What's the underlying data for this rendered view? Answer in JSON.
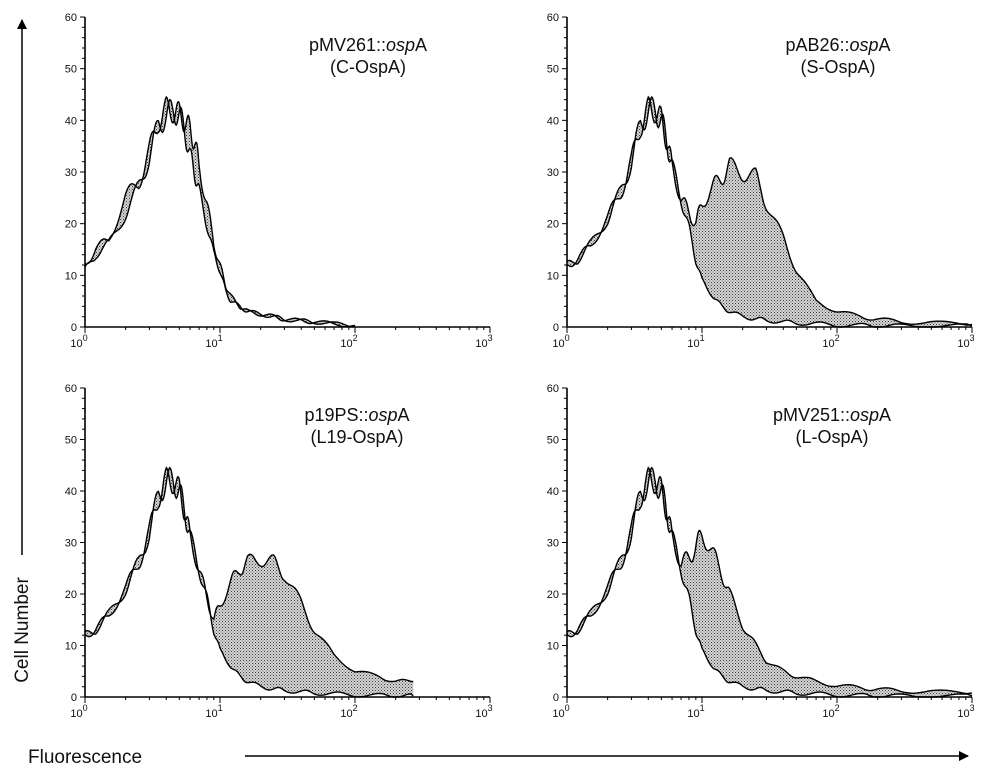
{
  "axis_titles": {
    "x": "Fluorescence",
    "y": "Cell Number"
  },
  "chart_data": [
    {
      "type": "area",
      "title_main": "pMV261::",
      "title_italic": "osp",
      "title_suffix": "A",
      "subtitle": "(C-OspA)",
      "xscale": "log",
      "xlim": [
        1,
        1000
      ],
      "ylim": [
        0,
        60
      ],
      "yticks": [
        "0",
        "10",
        "20",
        "30",
        "40",
        "50",
        "60"
      ],
      "xticks": [
        {
          "base": "10",
          "exp": "0"
        },
        {
          "base": "10",
          "exp": "1"
        },
        {
          "base": "10",
          "exp": "2"
        },
        {
          "base": "10",
          "exp": "3"
        }
      ],
      "series": [
        {
          "role": "control",
          "x": [
            1,
            1.2,
            1.5,
            2,
            2.5,
            3,
            3.5,
            4,
            4.5,
            5,
            5.5,
            6,
            6.5,
            7,
            8,
            9,
            10,
            11,
            12,
            14,
            16,
            20,
            25,
            30,
            40,
            50,
            70,
            100
          ],
          "y": [
            11,
            14,
            16,
            22,
            27,
            33,
            39,
            41,
            42,
            41,
            38,
            33,
            30,
            26,
            20,
            14,
            11,
            7,
            5,
            4,
            3,
            2.5,
            2,
            1.5,
            1.2,
            1,
            0.6,
            0.3
          ]
        },
        {
          "role": "sample",
          "x": [
            1,
            1.2,
            1.5,
            2,
            2.5,
            3,
            3.5,
            4,
            4.5,
            5,
            5.5,
            6,
            6.5,
            7,
            8,
            9,
            10,
            11,
            12,
            14,
            16,
            20,
            25,
            30,
            40,
            50,
            70,
            100
          ],
          "y": [
            12,
            15,
            17,
            25,
            28,
            34,
            40,
            42,
            42,
            41,
            40,
            38,
            36,
            31,
            24,
            16,
            12,
            8,
            6,
            4,
            3,
            2.5,
            2,
            1.5,
            1.2,
            1,
            0.6,
            0.3
          ]
        }
      ]
    },
    {
      "type": "area",
      "title_main": "pAB26::",
      "title_italic": "osp",
      "title_suffix": "A",
      "subtitle": "(S-OspA)",
      "xscale": "log",
      "xlim": [
        1,
        1000
      ],
      "ylim": [
        0,
        60
      ],
      "yticks": [
        "0",
        "10",
        "20",
        "30",
        "40",
        "50",
        "60"
      ],
      "xticks": [
        {
          "base": "10",
          "exp": "0"
        },
        {
          "base": "10",
          "exp": "1"
        },
        {
          "base": "10",
          "exp": "2"
        },
        {
          "base": "10",
          "exp": "3"
        }
      ],
      "series": [
        {
          "role": "control",
          "x": [
            1,
            1.2,
            1.5,
            2,
            2.5,
            3,
            3.5,
            4,
            4.5,
            5,
            5.5,
            6,
            7,
            8,
            9,
            10,
            12,
            14,
            16,
            20,
            25,
            30,
            40,
            50,
            70,
            100,
            150,
            200,
            300,
            500,
            1000
          ],
          "y": [
            12,
            13,
            16,
            21,
            26,
            32,
            39,
            42,
            42,
            40,
            36,
            31,
            25,
            19,
            13,
            9,
            6,
            4,
            3,
            2,
            1.6,
            1.3,
            1,
            0.8,
            0.6,
            0.4,
            0.3,
            0.3,
            0.2,
            0.2,
            0.2
          ]
        },
        {
          "role": "sample",
          "x": [
            1,
            1.2,
            1.5,
            2,
            2.5,
            3,
            3.5,
            4,
            4.5,
            5,
            5.5,
            6,
            7,
            8,
            9,
            10,
            12,
            14,
            16,
            20,
            25,
            30,
            40,
            50,
            70,
            100,
            150,
            200,
            300,
            500,
            1000
          ],
          "y": [
            12,
            13,
            16,
            21,
            26,
            32,
            39,
            42,
            42,
            40,
            36,
            31,
            25,
            22,
            20,
            24,
            27,
            29,
            31,
            30,
            29,
            24,
            17,
            11,
            5,
            3,
            2,
            1.5,
            1,
            0.8,
            0.5
          ]
        }
      ]
    },
    {
      "type": "area",
      "title_main": "p19PS::",
      "title_italic": "osp",
      "title_suffix": "A",
      "subtitle": "(L19-OspA)",
      "xscale": "log",
      "xlim": [
        1,
        1000
      ],
      "ylim": [
        0,
        60
      ],
      "yticks": [
        "0",
        "10",
        "20",
        "30",
        "40",
        "50",
        "60"
      ],
      "xticks": [
        {
          "base": "10",
          "exp": "0"
        },
        {
          "base": "10",
          "exp": "1"
        },
        {
          "base": "10",
          "exp": "2"
        },
        {
          "base": "10",
          "exp": "3"
        }
      ],
      "series": [
        {
          "role": "control",
          "x": [
            1,
            1.2,
            1.5,
            2,
            2.5,
            3,
            3.5,
            4,
            4.5,
            5,
            5.5,
            6,
            7,
            8,
            9,
            10,
            12,
            14,
            16,
            20,
            25,
            30,
            40,
            50,
            70,
            100,
            150,
            200,
            270
          ],
          "y": [
            12,
            13,
            16,
            21,
            26,
            32,
            39,
            42,
            42,
            40,
            36,
            31,
            25,
            19,
            13,
            9,
            6,
            4,
            3,
            2,
            1.6,
            1.3,
            1,
            0.8,
            0.6,
            0.4,
            0.3,
            0.3,
            0.2
          ]
        },
        {
          "role": "sample",
          "x": [
            1,
            1.2,
            1.5,
            2,
            2.5,
            3,
            3.5,
            4,
            4.5,
            5,
            5.5,
            6,
            7,
            8,
            9,
            10,
            12,
            14,
            16,
            20,
            25,
            30,
            40,
            50,
            70,
            100,
            150,
            200,
            270
          ],
          "y": [
            12,
            13,
            16,
            21,
            26,
            32,
            39,
            42,
            42,
            40,
            36,
            31,
            25,
            19,
            15,
            18,
            22,
            25,
            26,
            27,
            26,
            24,
            18,
            13,
            8,
            5,
            4,
            3,
            3
          ]
        }
      ]
    },
    {
      "type": "area",
      "title_main": "pMV251::",
      "title_italic": "osp",
      "title_suffix": "A",
      "subtitle": "(L-OspA)",
      "xscale": "log",
      "xlim": [
        1,
        1000
      ],
      "ylim": [
        0,
        60
      ],
      "yticks": [
        "0",
        "10",
        "20",
        "30",
        "40",
        "50",
        "60"
      ],
      "xticks": [
        {
          "base": "10",
          "exp": "0"
        },
        {
          "base": "10",
          "exp": "1"
        },
        {
          "base": "10",
          "exp": "2"
        },
        {
          "base": "10",
          "exp": "3"
        }
      ],
      "series": [
        {
          "role": "control",
          "x": [
            1,
            1.2,
            1.5,
            2,
            2.5,
            3,
            3.5,
            4,
            4.5,
            5,
            5.5,
            6,
            7,
            8,
            9,
            10,
            12,
            14,
            16,
            20,
            25,
            30,
            40,
            50,
            70,
            100,
            150,
            200,
            300,
            500,
            1000
          ],
          "y": [
            12,
            13,
            16,
            21,
            26,
            32,
            39,
            42,
            42,
            40,
            36,
            31,
            25,
            19,
            13,
            9,
            6,
            4,
            3,
            2,
            1.6,
            1.3,
            1,
            0.8,
            0.6,
            0.4,
            0.3,
            0.3,
            0.2,
            0.2,
            0.2
          ]
        },
        {
          "role": "sample",
          "x": [
            1,
            1.2,
            1.5,
            2,
            2.5,
            3,
            3.5,
            4,
            4.5,
            5,
            5.5,
            6,
            7,
            8,
            9,
            10,
            12,
            14,
            16,
            20,
            25,
            30,
            40,
            50,
            70,
            100,
            150,
            200,
            300,
            500,
            1000
          ],
          "y": [
            12,
            13,
            16,
            21,
            26,
            32,
            39,
            42,
            42,
            40,
            36,
            31,
            26,
            27,
            29,
            32,
            28,
            24,
            20,
            14,
            10,
            7,
            5,
            4,
            3,
            2.2,
            1.8,
            1.5,
            1.2,
            1,
            0.8
          ]
        }
      ]
    }
  ]
}
